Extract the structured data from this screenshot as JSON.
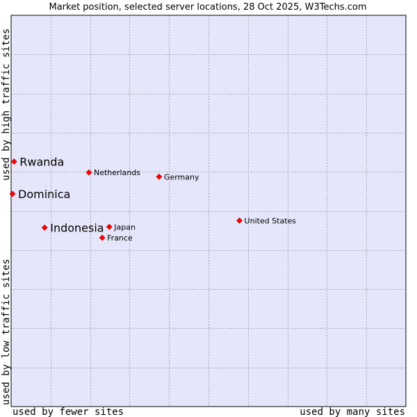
{
  "chart_data": {
    "type": "scatter",
    "title": "Market position, selected server locations, 28 Oct 2025, W3Techs.com",
    "xlabel_left": "used by fewer sites",
    "xlabel_right": "used by many sites",
    "ylabel_bottom": "used by low traffic sites",
    "ylabel_top": "used by high traffic sites",
    "xlim": [
      0,
      100
    ],
    "ylim": [
      0,
      100
    ],
    "grid": true,
    "colors": {
      "plot_background": "#e6e6fa",
      "grid": "#a6a6b6",
      "marker": "#ff0000",
      "marker_outline": "#aa0000"
    },
    "points": [
      {
        "label": "Rwanda",
        "x": 0.4,
        "y": 62.7,
        "emphasis": "primary"
      },
      {
        "label": "Dominica",
        "x": 0.0,
        "y": 54.4,
        "emphasis": "primary"
      },
      {
        "label": "Indonesia",
        "x": 8.2,
        "y": 45.7,
        "emphasis": "primary"
      },
      {
        "label": "Netherlands",
        "x": 19.5,
        "y": 59.9,
        "emphasis": "secondary"
      },
      {
        "label": "Germany",
        "x": 37.4,
        "y": 58.8,
        "emphasis": "secondary"
      },
      {
        "label": "United States",
        "x": 57.9,
        "y": 47.5,
        "emphasis": "secondary"
      },
      {
        "label": "Japan",
        "x": 24.7,
        "y": 45.9,
        "emphasis": "secondary"
      },
      {
        "label": "France",
        "x": 22.9,
        "y": 43.1,
        "emphasis": "secondary"
      }
    ]
  }
}
